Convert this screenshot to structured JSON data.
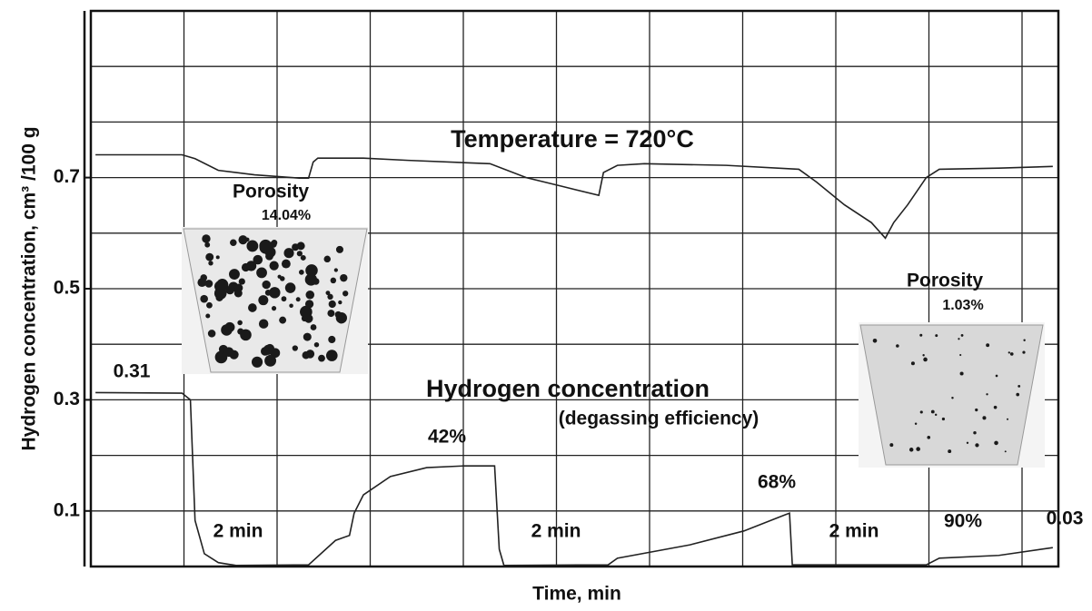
{
  "chart_data": {
    "type": "line",
    "x_label": "Time, min",
    "y_label": "Hydrogen concentration, cm³ /100 g",
    "xlim": [
      0,
      10.4
    ],
    "ylim": [
      0,
      1.0
    ],
    "yticks": [
      0.1,
      0.3,
      0.5,
      0.7
    ],
    "grid": true,
    "series": [
      {
        "name": "Temperature",
        "color": "#222222",
        "x": [
          0.05,
          0.98,
          1.12,
          1.37,
          1.76,
          2.24,
          2.34,
          2.39,
          2.44,
          2.93,
          3.41,
          4.29,
          4.68,
          5.07,
          5.46,
          5.51,
          5.66,
          5.95,
          6.83,
          7.61,
          7.8,
          8.1,
          8.39,
          8.54,
          8.63,
          8.78,
          8.98,
          9.12,
          9.76,
          10.34
        ],
        "values": [
          0.741,
          0.741,
          0.734,
          0.713,
          0.705,
          0.699,
          0.699,
          0.728,
          0.735,
          0.735,
          0.731,
          0.725,
          0.7,
          0.684,
          0.668,
          0.709,
          0.722,
          0.725,
          0.722,
          0.715,
          0.692,
          0.651,
          0.619,
          0.591,
          0.619,
          0.651,
          0.7,
          0.715,
          0.717,
          0.72
        ]
      },
      {
        "name": "Hydrogen concentration",
        "color": "#222222",
        "x": [
          0.05,
          0.98,
          1.07,
          1.12,
          1.22,
          1.37,
          1.56,
          2.34,
          2.63,
          2.78,
          2.83,
          2.93,
          3.22,
          3.61,
          4.0,
          4.34,
          4.39,
          4.44,
          5.56,
          5.66,
          6.44,
          7.02,
          7.46,
          7.51,
          7.54,
          8.98,
          9.12,
          9.76,
          10.34
        ],
        "values": [
          0.313,
          0.312,
          0.3,
          0.083,
          0.023,
          0.007,
          0.002,
          0.003,
          0.047,
          0.056,
          0.096,
          0.129,
          0.162,
          0.178,
          0.181,
          0.181,
          0.031,
          0.002,
          0.003,
          0.015,
          0.039,
          0.064,
          0.093,
          0.096,
          0.003,
          0.003,
          0.015,
          0.02,
          0.034
        ]
      }
    ],
    "annotations": [
      "Temperature = 720°C",
      "Porosity",
      "14.04%",
      "0.31",
      "Hydrogen concentration",
      "(degassing efficiency)",
      "42%",
      "68%",
      "2 min",
      "2 min",
      "2 min",
      "90%",
      "0.03",
      "Porosity",
      "1.03%"
    ]
  }
}
